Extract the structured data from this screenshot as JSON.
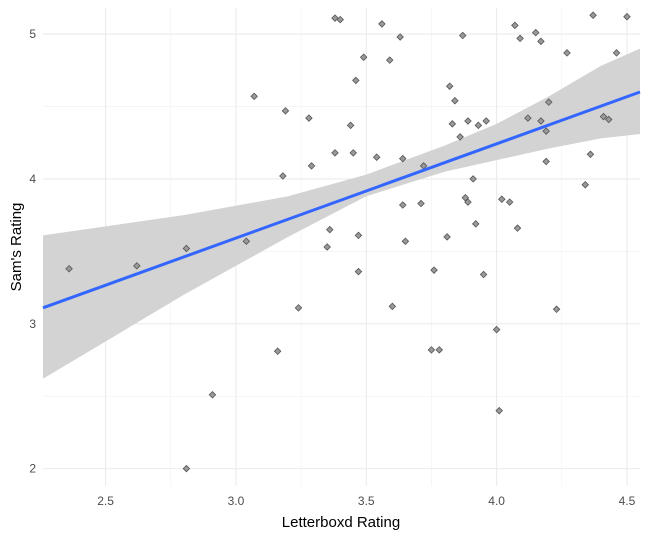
{
  "chart_data": {
    "type": "scatter",
    "title": "",
    "xlabel": "Letterboxd Rating",
    "ylabel": "Sam's Rating",
    "xlim": [
      2.26,
      4.55
    ],
    "ylim": [
      1.88,
      5.18
    ],
    "x_ticks": [
      2.5,
      3.0,
      3.5,
      4.0,
      4.5
    ],
    "x_tick_labels": [
      "2.5",
      "3.0",
      "3.5",
      "4.0",
      "4.5"
    ],
    "y_ticks": [
      2,
      3,
      4,
      5
    ],
    "y_tick_labels": [
      "2",
      "3",
      "4",
      "5"
    ],
    "grid": true,
    "legend": "none",
    "points": [
      [
        2.36,
        3.38
      ],
      [
        2.62,
        3.4
      ],
      [
        2.81,
        3.52
      ],
      [
        2.81,
        2.0
      ],
      [
        2.91,
        2.51
      ],
      [
        3.04,
        3.57
      ],
      [
        3.07,
        4.57
      ],
      [
        3.16,
        2.81
      ],
      [
        3.18,
        4.02
      ],
      [
        3.19,
        4.47
      ],
      [
        3.24,
        3.11
      ],
      [
        3.28,
        4.42
      ],
      [
        3.29,
        4.09
      ],
      [
        3.35,
        3.53
      ],
      [
        3.36,
        3.65
      ],
      [
        3.38,
        5.11
      ],
      [
        3.38,
        4.18
      ],
      [
        3.4,
        5.1
      ],
      [
        3.44,
        4.37
      ],
      [
        3.45,
        4.18
      ],
      [
        3.46,
        4.68
      ],
      [
        3.47,
        3.61
      ],
      [
        3.47,
        3.36
      ],
      [
        3.49,
        4.84
      ],
      [
        3.54,
        4.15
      ],
      [
        3.56,
        5.07
      ],
      [
        3.59,
        4.82
      ],
      [
        3.6,
        3.12
      ],
      [
        3.63,
        4.98
      ],
      [
        3.64,
        4.14
      ],
      [
        3.64,
        3.82
      ],
      [
        3.65,
        3.57
      ],
      [
        3.71,
        3.83
      ],
      [
        3.72,
        4.09
      ],
      [
        3.75,
        2.82
      ],
      [
        3.76,
        3.37
      ],
      [
        3.78,
        2.82
      ],
      [
        3.81,
        3.6
      ],
      [
        3.82,
        4.64
      ],
      [
        3.84,
        4.54
      ],
      [
        3.83,
        4.38
      ],
      [
        3.86,
        4.29
      ],
      [
        3.87,
        4.99
      ],
      [
        3.88,
        3.87
      ],
      [
        3.89,
        3.84
      ],
      [
        3.89,
        4.4
      ],
      [
        3.91,
        4.0
      ],
      [
        3.92,
        3.69
      ],
      [
        3.93,
        4.37
      ],
      [
        3.95,
        3.34
      ],
      [
        3.96,
        4.4
      ],
      [
        4.0,
        2.96
      ],
      [
        4.01,
        2.4
      ],
      [
        4.02,
        3.86
      ],
      [
        4.05,
        3.84
      ],
      [
        4.07,
        5.06
      ],
      [
        4.08,
        3.66
      ],
      [
        4.09,
        4.97
      ],
      [
        4.12,
        4.42
      ],
      [
        4.15,
        5.01
      ],
      [
        4.17,
        4.95
      ],
      [
        4.17,
        4.4
      ],
      [
        4.19,
        4.33
      ],
      [
        4.19,
        4.12
      ],
      [
        4.2,
        4.53
      ],
      [
        4.23,
        3.1
      ],
      [
        4.27,
        4.87
      ],
      [
        4.34,
        3.96
      ],
      [
        4.36,
        4.17
      ],
      [
        4.37,
        5.13
      ],
      [
        4.41,
        4.43
      ],
      [
        4.43,
        4.41
      ],
      [
        4.46,
        4.87
      ],
      [
        4.5,
        5.12
      ]
    ],
    "trend_line": {
      "color": "#3366FF",
      "points": [
        [
          2.26,
          3.11
        ],
        [
          4.55,
          4.6
        ]
      ]
    },
    "confidence_band": {
      "color": "#d3d3d3",
      "upper": [
        [
          2.26,
          3.61
        ],
        [
          2.8,
          3.75
        ],
        [
          3.2,
          3.88
        ],
        [
          3.5,
          4.03
        ],
        [
          3.8,
          4.23
        ],
        [
          4.0,
          4.38
        ],
        [
          4.2,
          4.57
        ],
        [
          4.4,
          4.78
        ],
        [
          4.55,
          4.9
        ]
      ],
      "lower": [
        [
          2.26,
          2.62
        ],
        [
          2.8,
          3.2
        ],
        [
          3.2,
          3.6
        ],
        [
          3.5,
          3.88
        ],
        [
          3.8,
          4.05
        ],
        [
          4.0,
          4.13
        ],
        [
          4.2,
          4.21
        ],
        [
          4.4,
          4.28
        ],
        [
          4.55,
          4.31
        ]
      ]
    },
    "point_color": "#999999"
  }
}
